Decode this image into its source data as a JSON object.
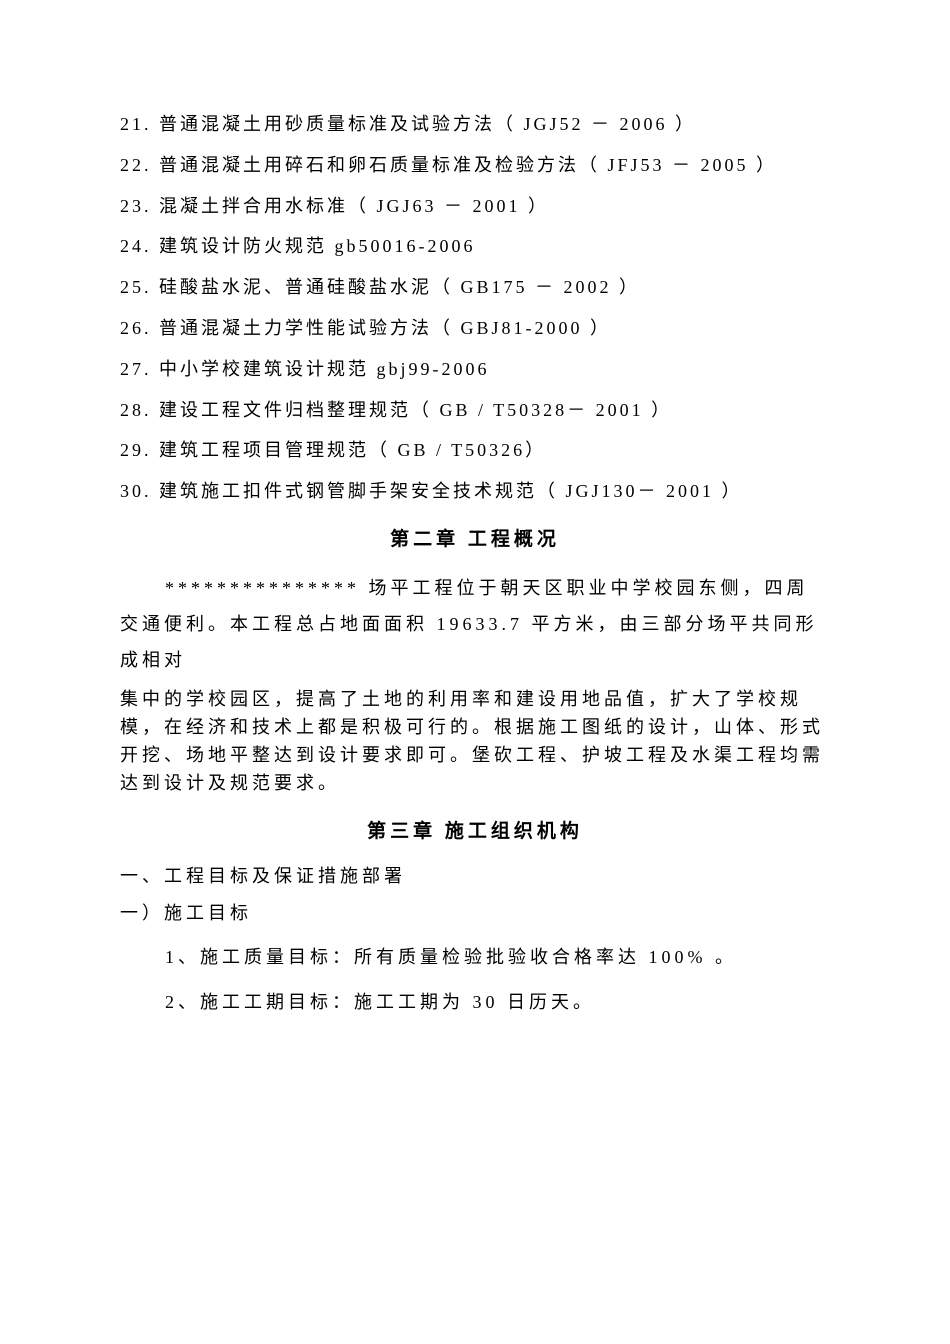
{
  "items": [
    {
      "num": "21.",
      "text": "普通混凝土用砂质量标准及试验方法（ JGJ52 － 2006 ）"
    },
    {
      "num": "22.",
      "text": "普通混凝土用碎石和卵石质量标准及检验方法（ JFJ53 － 2005 ）"
    },
    {
      "num": "23.",
      "text": "混凝土拌合用水标准（ JGJ63 － 2001 ）"
    },
    {
      "num": "24.",
      "text": "建筑设计防火规范 gb50016-2006"
    },
    {
      "num": "25.",
      "text": "硅酸盐水泥、普通硅酸盐水泥（ GB175 － 2002 ）"
    },
    {
      "num": "26.",
      "text": "普通混凝土力学性能试验方法（ GBJ81-2000 ）"
    },
    {
      "num": "27.",
      "text": "中小学校建筑设计规范 gbj99-2006"
    },
    {
      "num": "28.",
      "text": "建设工程文件归档整理规范（ GB / T50328－ 2001 ）"
    },
    {
      "num": "29.",
      "text": "建筑工程项目管理规范（ GB / T50326）"
    },
    {
      "num": "30.",
      "text": "建筑施工扣件式钢管脚手架安全技术规范（ JGJ130－ 2001 ）"
    }
  ],
  "chapter2": {
    "title": "第二章  工程概况",
    "p1a": "*************** 场平工程位于朝天区职业中学校园东侧，四周交通便利。本工程总占地面面积 19633.7 平方米，由三部分场平共同形成相对",
    "p1b": "集中的学校园区，提高了土地的利用率和建设用地品值，扩大了学校规模，在经济和技术上都是积极可行的。根据施工图纸的设计，山体、形式开挖、场地平整达到设计要求即可。堡砍工程、护坡工程及水渠工程均需达到设计及规范要求。"
  },
  "chapter3": {
    "title": "第三章  施工组织机构",
    "sec1": "一、工程目标及保证措施部署",
    "sub1": " 一）施工目标",
    "item1": "1、施工质量目标：所有质量检验批验收合格率达 100% 。",
    "item2": "2、施工工期目标：施工工期为 30 日历天。"
  }
}
